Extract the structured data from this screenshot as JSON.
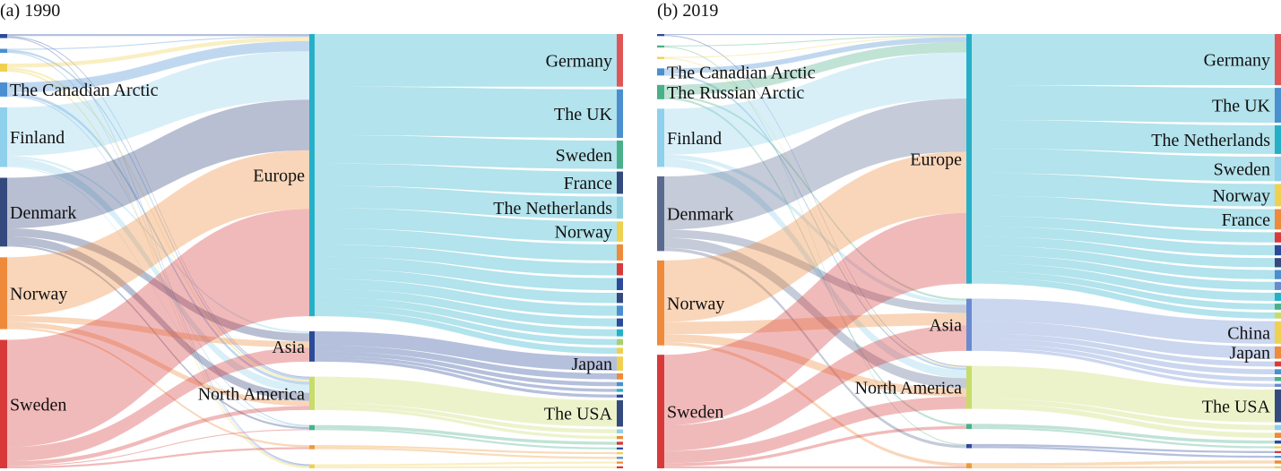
{
  "figure": {
    "panels": [
      {
        "title": "(a) 1990",
        "sources": [
          {
            "id": "s1",
            "label": "",
            "color": "#2c4a9a"
          },
          {
            "id": "s2",
            "label": "",
            "color": "#4a8fd0"
          },
          {
            "id": "s3",
            "label": "",
            "color": "#f0d050"
          },
          {
            "id": "ca",
            "label": "The Canadian Arctic",
            "color": "#4a8fd0"
          },
          {
            "id": "fi",
            "label": "Finland",
            "color": "#8fd0ec"
          },
          {
            "id": "dk",
            "label": "Denmark",
            "color": "#34497e"
          },
          {
            "id": "no",
            "label": "Norway",
            "color": "#ee8a3a"
          },
          {
            "id": "se",
            "label": "Sweden",
            "color": "#d83a3a"
          }
        ],
        "regions": [
          {
            "id": "eu",
            "label": "Europe",
            "color": "#26b0c8"
          },
          {
            "id": "as",
            "label": "Asia",
            "color": "#2c4a9a"
          },
          {
            "id": "na",
            "label": "North America",
            "color": "#c8dc6a"
          },
          {
            "id": "r4",
            "label": "",
            "color": "#4ab08a"
          },
          {
            "id": "r5",
            "label": "",
            "color": "#ee9a3a"
          },
          {
            "id": "r6",
            "label": "",
            "color": "#f0d050"
          }
        ],
        "destinations": [
          {
            "id": "de",
            "label": "Germany",
            "color": "#e05555"
          },
          {
            "id": "uk",
            "label": "The UK",
            "color": "#4a8fd0"
          },
          {
            "id": "sw",
            "label": "Sweden",
            "color": "#4ab08a"
          },
          {
            "id": "fr",
            "label": "France",
            "color": "#34497e"
          },
          {
            "id": "nl",
            "label": "The Netherlands",
            "color": "#8fd0e0"
          },
          {
            "id": "nw",
            "label": "Norway",
            "color": "#f0d050"
          },
          {
            "id": "a7",
            "label": "",
            "color": "#ee8a3a"
          },
          {
            "id": "a8",
            "label": "",
            "color": "#d83a3a"
          },
          {
            "id": "a9",
            "label": "",
            "color": "#2c4a9a"
          },
          {
            "id": "a10",
            "label": "",
            "color": "#34497e"
          },
          {
            "id": "a11",
            "label": "",
            "color": "#4a8fd0"
          },
          {
            "id": "a12",
            "label": "",
            "color": "#2c4a9a"
          },
          {
            "id": "a13",
            "label": "",
            "color": "#26b0c8"
          },
          {
            "id": "a14",
            "label": "",
            "color": "#a8d070"
          },
          {
            "id": "a15",
            "label": "",
            "color": "#f0d050"
          },
          {
            "id": "jp",
            "label": "Japan",
            "color": "#f0d050"
          },
          {
            "id": "a17",
            "label": "",
            "color": "#ee8a3a"
          },
          {
            "id": "a18",
            "label": "",
            "color": "#4a8fd0"
          },
          {
            "id": "a19",
            "label": "",
            "color": "#26b0c8"
          },
          {
            "id": "a20",
            "label": "",
            "color": "#2c4a9a"
          },
          {
            "id": "us",
            "label": "The USA",
            "color": "#34497e"
          },
          {
            "id": "a22",
            "label": "",
            "color": "#8fd0ec"
          },
          {
            "id": "a23",
            "label": "",
            "color": "#ee8a3a"
          },
          {
            "id": "a24",
            "label": "",
            "color": "#d83a3a"
          },
          {
            "id": "a25",
            "label": "",
            "color": "#2c4a9a"
          },
          {
            "id": "a26",
            "label": "",
            "color": "#f0d050"
          },
          {
            "id": "a27",
            "label": "",
            "color": "#4a8fd0"
          },
          {
            "id": "a28",
            "label": "",
            "color": "#ee8a3a"
          },
          {
            "id": "a29",
            "label": "",
            "color": "#d83a3a"
          }
        ],
        "flows_source_region": [
          [
            "s1",
            "eu",
            2
          ],
          [
            "s2",
            "eu",
            1
          ],
          [
            "s3",
            "eu",
            4
          ],
          [
            "ca",
            "eu",
            10
          ],
          [
            "fi",
            "eu",
            48
          ],
          [
            "dk",
            "eu",
            50
          ],
          [
            "no",
            "eu",
            58
          ],
          [
            "se",
            "eu",
            106
          ],
          [
            "fi",
            "as",
            2
          ],
          [
            "dk",
            "as",
            8
          ],
          [
            "no",
            "as",
            6
          ],
          [
            "se",
            "as",
            14
          ],
          [
            "s1",
            "na",
            1
          ],
          [
            "s2",
            "na",
            2
          ],
          [
            "s3",
            "na",
            2
          ],
          [
            "ca",
            "na",
            3
          ],
          [
            "fi",
            "na",
            8
          ],
          [
            "dk",
            "na",
            8
          ],
          [
            "no",
            "na",
            5
          ],
          [
            "se",
            "na",
            4
          ],
          [
            "ca",
            "r4",
            1
          ],
          [
            "fi",
            "r4",
            1
          ],
          [
            "dk",
            "r4",
            2
          ],
          [
            "se",
            "r4",
            1
          ],
          [
            "no",
            "r5",
            2
          ],
          [
            "se",
            "r5",
            2
          ],
          [
            "s1",
            "r6",
            1
          ],
          [
            "s2",
            "r6",
            1
          ],
          [
            "s3",
            "r6",
            2
          ]
        ],
        "flows_region_destination": [
          [
            "eu",
            "de",
            52
          ],
          [
            "eu",
            "uk",
            48
          ],
          [
            "eu",
            "sw",
            28
          ],
          [
            "eu",
            "fr",
            22
          ],
          [
            "eu",
            "nl",
            22
          ],
          [
            "eu",
            "nw",
            20
          ],
          [
            "eu",
            "a7",
            16
          ],
          [
            "eu",
            "a8",
            12
          ],
          [
            "eu",
            "a9",
            12
          ],
          [
            "eu",
            "a10",
            10
          ],
          [
            "eu",
            "a11",
            10
          ],
          [
            "eu",
            "a12",
            8
          ],
          [
            "eu",
            "a13",
            7
          ],
          [
            "eu",
            "a14",
            6
          ],
          [
            "eu",
            "a15",
            6
          ],
          [
            "as",
            "jp",
            14
          ],
          [
            "as",
            "a17",
            6
          ],
          [
            "as",
            "a18",
            4
          ],
          [
            "as",
            "a19",
            3
          ],
          [
            "as",
            "a20",
            3
          ],
          [
            "na",
            "us",
            26
          ],
          [
            "na",
            "a22",
            4
          ],
          [
            "na",
            "a23",
            3
          ],
          [
            "r4",
            "a24",
            3
          ],
          [
            "r4",
            "a25",
            2
          ],
          [
            "r5",
            "a26",
            2
          ],
          [
            "r5",
            "a27",
            2
          ],
          [
            "r6",
            "a28",
            2
          ],
          [
            "r6",
            "a29",
            2
          ]
        ]
      },
      {
        "title": "(b) 2019",
        "sources": [
          {
            "id": "s1",
            "label": "",
            "color": "#2c4a9a"
          },
          {
            "id": "s2",
            "label": "",
            "color": "#4ab08a"
          },
          {
            "id": "s3",
            "label": "",
            "color": "#f0d050"
          },
          {
            "id": "ca",
            "label": "The Canadian Arctic",
            "color": "#4a8fd0"
          },
          {
            "id": "ra",
            "label": "The Russian Arctic",
            "color": "#4ab08a"
          },
          {
            "id": "fi",
            "label": "Finland",
            "color": "#8fd0ec"
          },
          {
            "id": "dk",
            "label": "Denmark",
            "color": "#5a6a8e"
          },
          {
            "id": "no",
            "label": "Norway",
            "color": "#ee8a3a"
          },
          {
            "id": "se",
            "label": "Sweden",
            "color": "#d83a3a"
          }
        ],
        "regions": [
          {
            "id": "eu",
            "label": "Europe",
            "color": "#26b0c8"
          },
          {
            "id": "as",
            "label": "Asia",
            "color": "#6a8ad0"
          },
          {
            "id": "na",
            "label": "North America",
            "color": "#c8dc6a"
          },
          {
            "id": "r4",
            "label": "",
            "color": "#4ab08a"
          },
          {
            "id": "r5",
            "label": "",
            "color": "#2c4a9a"
          },
          {
            "id": "r6",
            "label": "",
            "color": "#ee9a3a"
          }
        ],
        "destinations": [
          {
            "id": "de",
            "label": "Germany",
            "color": "#e05555"
          },
          {
            "id": "uk",
            "label": "The UK",
            "color": "#4a8fd0"
          },
          {
            "id": "nl",
            "label": "The Netherlands",
            "color": "#26b0c8"
          },
          {
            "id": "sw",
            "label": "Sweden",
            "color": "#8fd0ec"
          },
          {
            "id": "nw",
            "label": "Norway",
            "color": "#f0d050"
          },
          {
            "id": "fr",
            "label": "France",
            "color": "#ee8a3a"
          },
          {
            "id": "b7",
            "label": "",
            "color": "#d83a3a"
          },
          {
            "id": "b8",
            "label": "",
            "color": "#2c4a9a"
          },
          {
            "id": "b9",
            "label": "",
            "color": "#34497e"
          },
          {
            "id": "b10",
            "label": "",
            "color": "#4a8fd0"
          },
          {
            "id": "b11",
            "label": "",
            "color": "#6a8ad0"
          },
          {
            "id": "b12",
            "label": "",
            "color": "#26b0c8"
          },
          {
            "id": "b13",
            "label": "",
            "color": "#4ab08a"
          },
          {
            "id": "b14",
            "label": "",
            "color": "#c8dc6a"
          },
          {
            "id": "cn",
            "label": "China",
            "color": "#f0d050"
          },
          {
            "id": "jp",
            "label": "Japan",
            "color": "#ee8a3a"
          },
          {
            "id": "b17",
            "label": "",
            "color": "#d83a3a"
          },
          {
            "id": "b18",
            "label": "",
            "color": "#4a8fd0"
          },
          {
            "id": "b19",
            "label": "",
            "color": "#4ab08a"
          },
          {
            "id": "b20",
            "label": "",
            "color": "#6a8ad0"
          },
          {
            "id": "us",
            "label": "The USA",
            "color": "#34497e"
          },
          {
            "id": "b22",
            "label": "",
            "color": "#8fd0ec"
          },
          {
            "id": "b23",
            "label": "",
            "color": "#ee8a3a"
          },
          {
            "id": "b24",
            "label": "",
            "color": "#2c4a9a"
          },
          {
            "id": "b25",
            "label": "",
            "color": "#f0d050"
          },
          {
            "id": "b26",
            "label": "",
            "color": "#d83a3a"
          },
          {
            "id": "b27",
            "label": "",
            "color": "#4a8fd0"
          },
          {
            "id": "b28",
            "label": "",
            "color": "#ee8a3a"
          },
          {
            "id": "b29",
            "label": "",
            "color": "#f0d050"
          }
        ],
        "flows_source_region": [
          [
            "s1",
            "eu",
            1
          ],
          [
            "s2",
            "eu",
            1
          ],
          [
            "s3",
            "eu",
            1
          ],
          [
            "ca",
            "eu",
            5
          ],
          [
            "ra",
            "eu",
            10
          ],
          [
            "fi",
            "eu",
            45
          ],
          [
            "dk",
            "eu",
            52
          ],
          [
            "no",
            "eu",
            60
          ],
          [
            "se",
            "eu",
            69
          ],
          [
            "ra",
            "as",
            2
          ],
          [
            "fi",
            "as",
            4
          ],
          [
            "dk",
            "as",
            8
          ],
          [
            "no",
            "as",
            12
          ],
          [
            "se",
            "as",
            25
          ],
          [
            "s1",
            "na",
            1
          ],
          [
            "s3",
            "na",
            1
          ],
          [
            "ca",
            "na",
            2
          ],
          [
            "fi",
            "na",
            8
          ],
          [
            "dk",
            "na",
            10
          ],
          [
            "no",
            "na",
            8
          ],
          [
            "se",
            "na",
            12
          ],
          [
            "ra",
            "r4",
            2
          ],
          [
            "se",
            "r4",
            3
          ],
          [
            "s2",
            "r5",
            1
          ],
          [
            "dk",
            "r5",
            3
          ],
          [
            "no",
            "r6",
            3
          ],
          [
            "se",
            "r6",
            2
          ]
        ],
        "flows_region_destination": [
          [
            "eu",
            "de",
            50
          ],
          [
            "eu",
            "uk",
            34
          ],
          [
            "eu",
            "nl",
            28
          ],
          [
            "eu",
            "sw",
            24
          ],
          [
            "eu",
            "nw",
            22
          ],
          [
            "eu",
            "fr",
            20
          ],
          [
            "eu",
            "b7",
            10
          ],
          [
            "eu",
            "b8",
            10
          ],
          [
            "eu",
            "b9",
            9
          ],
          [
            "eu",
            "b10",
            9
          ],
          [
            "eu",
            "b11",
            8
          ],
          [
            "eu",
            "b12",
            8
          ],
          [
            "eu",
            "b13",
            6
          ],
          [
            "eu",
            "b14",
            6
          ],
          [
            "as",
            "cn",
            22
          ],
          [
            "as",
            "jp",
            12
          ],
          [
            "as",
            "b17",
            5
          ],
          [
            "as",
            "b18",
            5
          ],
          [
            "as",
            "b19",
            4
          ],
          [
            "as",
            "b20",
            3
          ],
          [
            "na",
            "us",
            32
          ],
          [
            "na",
            "b22",
            5
          ],
          [
            "na",
            "b23",
            5
          ],
          [
            "r4",
            "b24",
            3
          ],
          [
            "r4",
            "b25",
            2
          ],
          [
            "r5",
            "b26",
            2
          ],
          [
            "r5",
            "b27",
            2
          ],
          [
            "r6",
            "b28",
            3
          ],
          [
            "r6",
            "b29",
            2
          ]
        ]
      }
    ]
  }
}
